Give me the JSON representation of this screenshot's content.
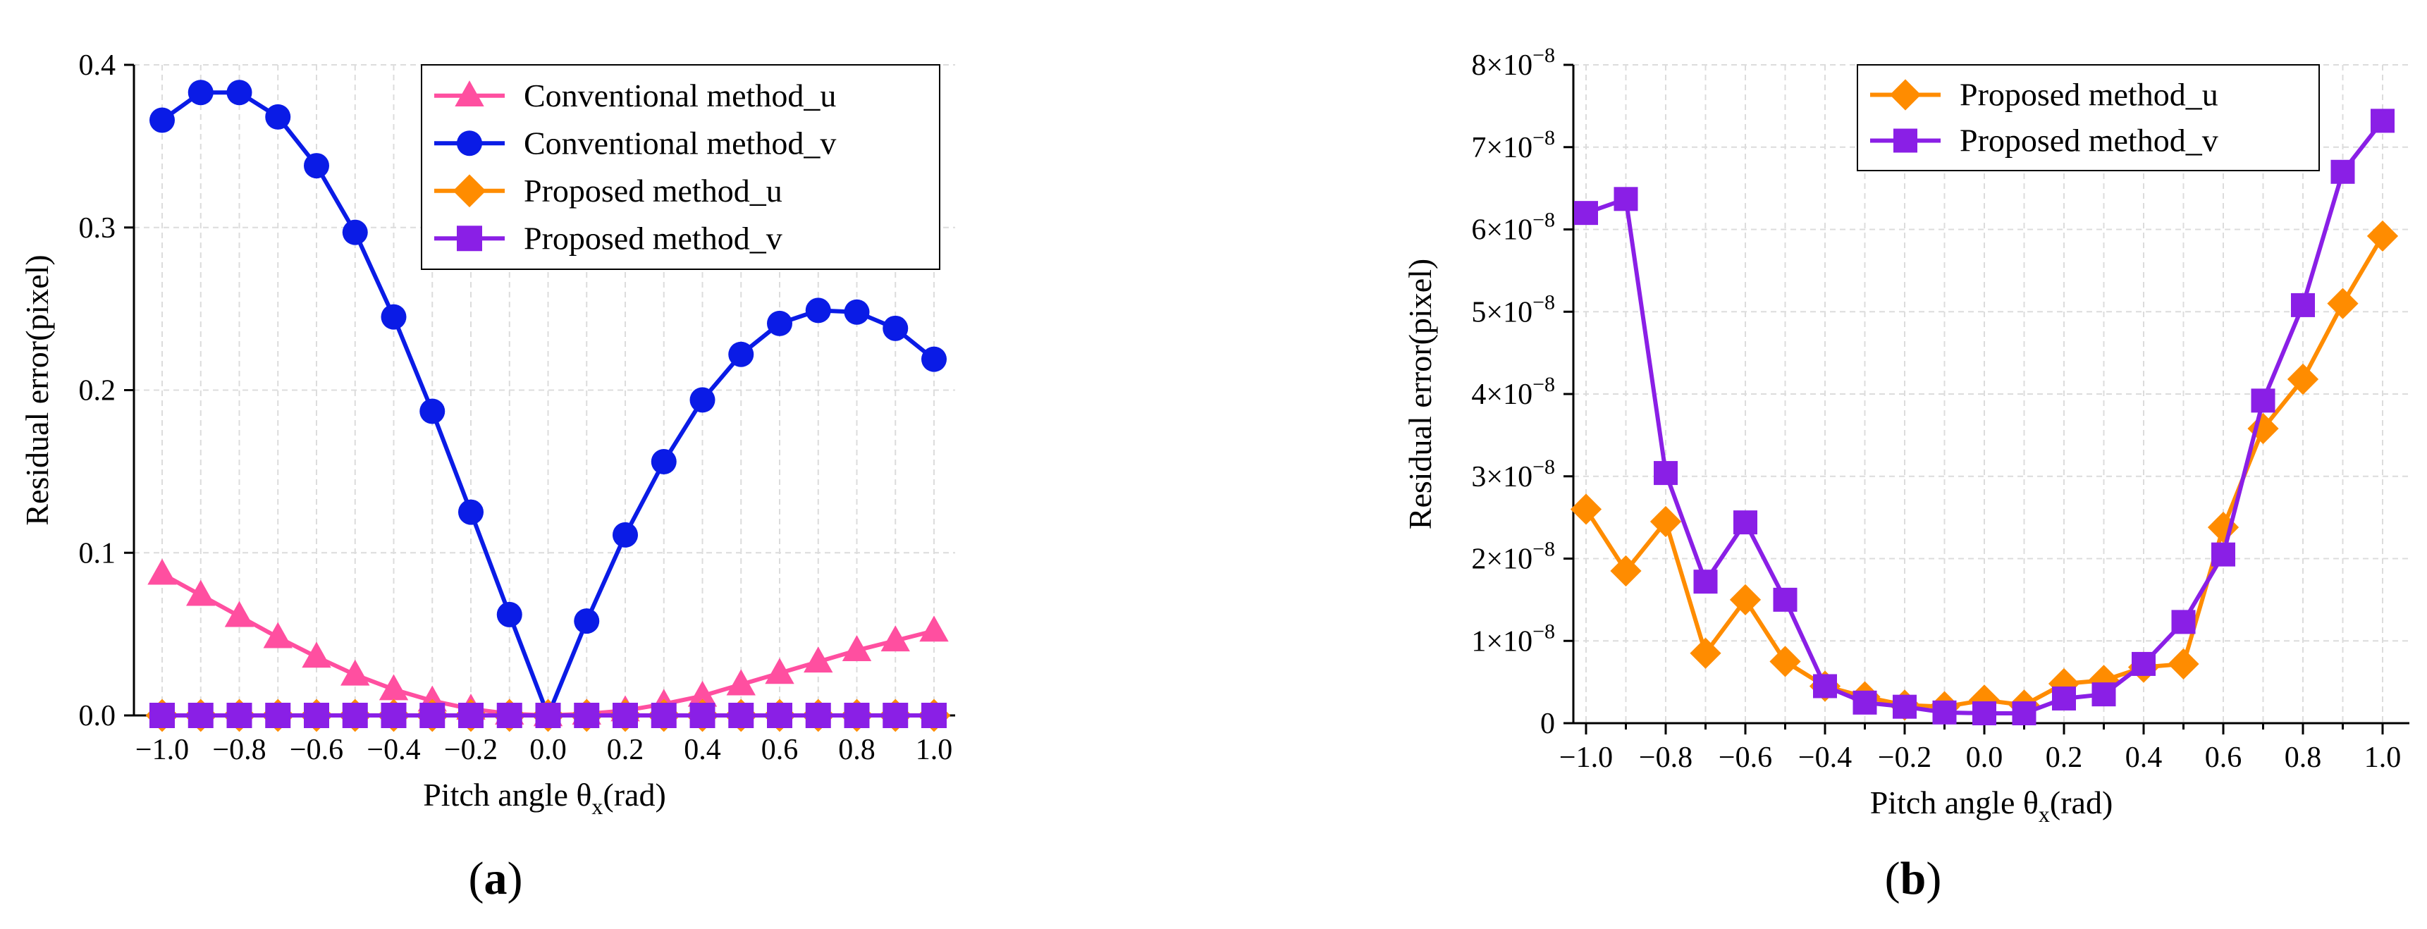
{
  "chart_data": [
    {
      "type": "line",
      "panel_label": "a",
      "xlabel_main": "Pitch angle θ",
      "xlabel_sub": "x",
      "xlabel_unit": "(rad)",
      "ylabel": "Residual error(pixel)",
      "xlim": [
        -1.0,
        1.0
      ],
      "ylim": [
        0,
        0.4
      ],
      "xticks": [
        "−1.0",
        "−0.8",
        "−0.6",
        "−0.4",
        "−0.2",
        "0.0",
        "0.2",
        "0.4",
        "0.6",
        "0.8",
        "1.0"
      ],
      "yticks": [
        "0.0",
        "0.1",
        "0.2",
        "0.3",
        "0.4"
      ],
      "x": [
        -1.0,
        -0.9,
        -0.8,
        -0.7,
        -0.6,
        -0.5,
        -0.4,
        -0.3,
        -0.2,
        -0.1,
        0.0,
        0.1,
        0.2,
        0.3,
        0.4,
        0.5,
        0.6,
        0.7,
        0.8,
        0.9,
        1.0
      ],
      "legend_position": "top-right",
      "series": [
        {
          "name": "Conventional method_u",
          "color": "#ff4fa0",
          "marker": "triangle",
          "values": [
            0.087,
            0.074,
            0.061,
            0.048,
            0.036,
            0.025,
            0.016,
            0.009,
            0.004,
            0.001,
            0.0,
            0.001,
            0.003,
            0.007,
            0.012,
            0.019,
            0.026,
            0.033,
            0.04,
            0.046,
            0.052
          ]
        },
        {
          "name": "Conventional method_v",
          "color": "#0a1be6",
          "marker": "circle",
          "values": [
            0.366,
            0.383,
            0.383,
            0.368,
            0.338,
            0.297,
            0.245,
            0.187,
            0.125,
            0.062,
            0.0,
            0.058,
            0.111,
            0.156,
            0.194,
            0.222,
            0.241,
            0.249,
            0.248,
            0.238,
            0.219
          ]
        },
        {
          "name": "Proposed method_u",
          "color": "#ff8c00",
          "marker": "diamond",
          "values": [
            0,
            0,
            0,
            0,
            0,
            0,
            0,
            0,
            0,
            0,
            0,
            0,
            0,
            0,
            0,
            0,
            0,
            0,
            0,
            0,
            0
          ]
        },
        {
          "name": "Proposed method_v",
          "color": "#8a1fe6",
          "marker": "square",
          "values": [
            0,
            0,
            0,
            0,
            0,
            0,
            0,
            0,
            0,
            0,
            0,
            0,
            0,
            0,
            0,
            0,
            0,
            0,
            0,
            0,
            0
          ]
        }
      ]
    },
    {
      "type": "line",
      "panel_label": "b",
      "xlabel_main": "Pitch angle θ",
      "xlabel_sub": "x",
      "xlabel_unit": "(rad)",
      "ylabel": "Residual error(pixel)",
      "xlim": [
        -1.0,
        1.0
      ],
      "ylim": [
        0,
        8
      ],
      "y_scale_exponent": "−8",
      "xticks": [
        "−1.0",
        "−0.8",
        "−0.6",
        "−0.4",
        "−0.2",
        "0.0",
        "0.2",
        "0.4",
        "0.6",
        "0.8",
        "1.0"
      ],
      "yticks": [
        "0",
        "1×10",
        "2×10",
        "3×10",
        "4×10",
        "5×10",
        "6×10",
        "7×10",
        "8×10"
      ],
      "x": [
        -1.0,
        -0.9,
        -0.8,
        -0.7,
        -0.6,
        -0.5,
        -0.4,
        -0.3,
        -0.2,
        -0.1,
        0.0,
        0.1,
        0.2,
        0.3,
        0.4,
        0.5,
        0.6,
        0.7,
        0.8,
        0.9,
        1.0
      ],
      "legend_position": "top-right",
      "series": [
        {
          "name": "Proposed method_u",
          "color": "#ff8c00",
          "marker": "diamond",
          "values": [
            2.6,
            1.85,
            2.45,
            0.85,
            1.5,
            0.75,
            0.45,
            0.32,
            0.22,
            0.2,
            0.28,
            0.22,
            0.48,
            0.52,
            0.68,
            0.72,
            2.38,
            3.58,
            4.18,
            5.1,
            5.92
          ]
        },
        {
          "name": "Proposed method_v",
          "color": "#8a1fe6",
          "marker": "square",
          "values": [
            6.2,
            6.37,
            3.04,
            1.72,
            2.44,
            1.5,
            0.45,
            0.25,
            0.2,
            0.13,
            0.12,
            0.12,
            0.3,
            0.35,
            0.72,
            1.23,
            2.05,
            3.92,
            5.08,
            6.7,
            7.32
          ]
        }
      ]
    }
  ]
}
